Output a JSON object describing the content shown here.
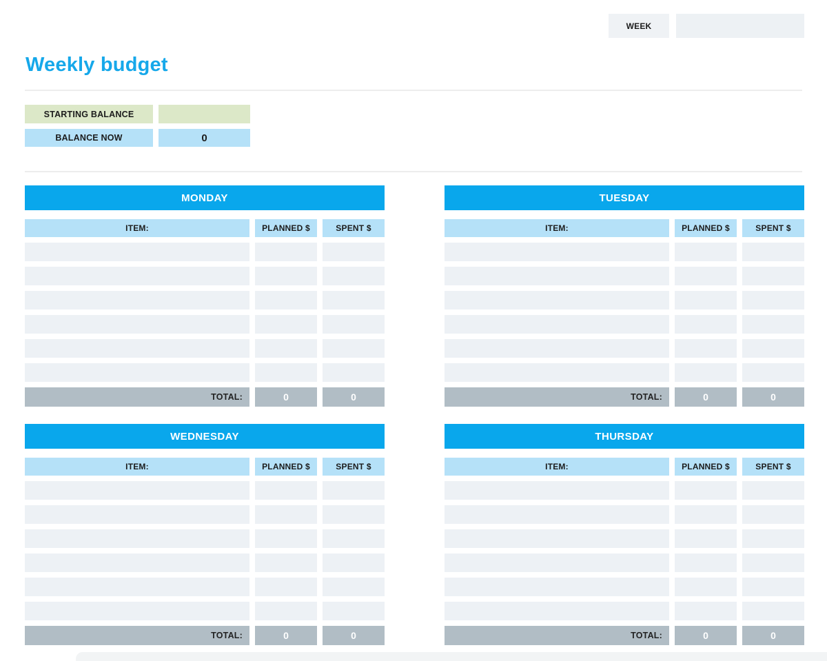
{
  "title": "Weekly budget",
  "week": {
    "label": "WEEK",
    "value": ""
  },
  "balance": {
    "starting_label": "STARTING BALANCE",
    "starting_value": "",
    "now_label": "BALANCE NOW",
    "now_value": "0"
  },
  "columns": {
    "item": "ITEM:",
    "planned": "PLANNED $",
    "spent": "SPENT $"
  },
  "total_label": "TOTAL:",
  "tables": [
    {
      "day": "MONDAY",
      "planned_total": "0",
      "spent_total": "0"
    },
    {
      "day": "TUESDAY",
      "planned_total": "0",
      "spent_total": "0"
    },
    {
      "day": "WEDNESDAY",
      "planned_total": "0",
      "spent_total": "0"
    },
    {
      "day": "THURSDAY",
      "planned_total": "0",
      "spent_total": "0"
    }
  ],
  "layout_hints": {
    "rows_per_table": 6
  },
  "colors": {
    "accent_blue": "#09a7ec",
    "title_blue": "#16a8ea",
    "light_blue": "#b5e1f8",
    "light_green": "#dce8c8",
    "row_fill": "#edf1f5",
    "total_gray": "#b1bdc5",
    "week_cell_gray": "#eff2f5"
  }
}
